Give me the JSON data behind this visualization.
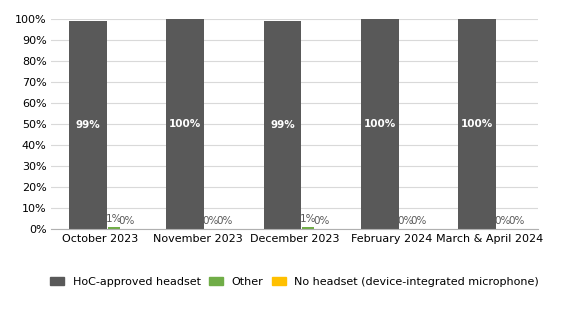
{
  "categories": [
    "October 2023",
    "November 2023",
    "December 2023",
    "February 2024",
    "March & April 2024"
  ],
  "series": {
    "HoC-approved headset": [
      99,
      100,
      99,
      100,
      100
    ],
    "Other": [
      1,
      0,
      1,
      0,
      0
    ],
    "No headset (device-integrated microphone)": [
      0,
      0,
      0,
      0,
      0
    ]
  },
  "colors": {
    "HoC-approved headset": "#595959",
    "Other": "#70ad47",
    "No headset (device-integrated microphone)": "#ffc000"
  },
  "labels": {
    "HoC-approved headset": [
      "99%",
      "100%",
      "99%",
      "100%",
      "100%"
    ],
    "Other": [
      "1%",
      "0%",
      "1%",
      "0%",
      "0%"
    ],
    "No headset (device-integrated microphone)": [
      "0%",
      "0%",
      "0%",
      "0%",
      "0%"
    ]
  },
  "ylim": [
    0,
    100
  ],
  "yticks": [
    0,
    10,
    20,
    30,
    40,
    50,
    60,
    70,
    80,
    90,
    100
  ],
  "ytick_labels": [
    "0%",
    "10%",
    "20%",
    "30%",
    "40%",
    "50%",
    "60%",
    "70%",
    "80%",
    "90%",
    "100%"
  ],
  "group_width": 0.7,
  "background_color": "#ffffff",
  "grid_color": "#d9d9d9",
  "text_color_on_bar": "#ffffff",
  "text_color_outside": "#595959",
  "label_fontsize": 7.5,
  "tick_fontsize": 8,
  "legend_fontsize": 8
}
